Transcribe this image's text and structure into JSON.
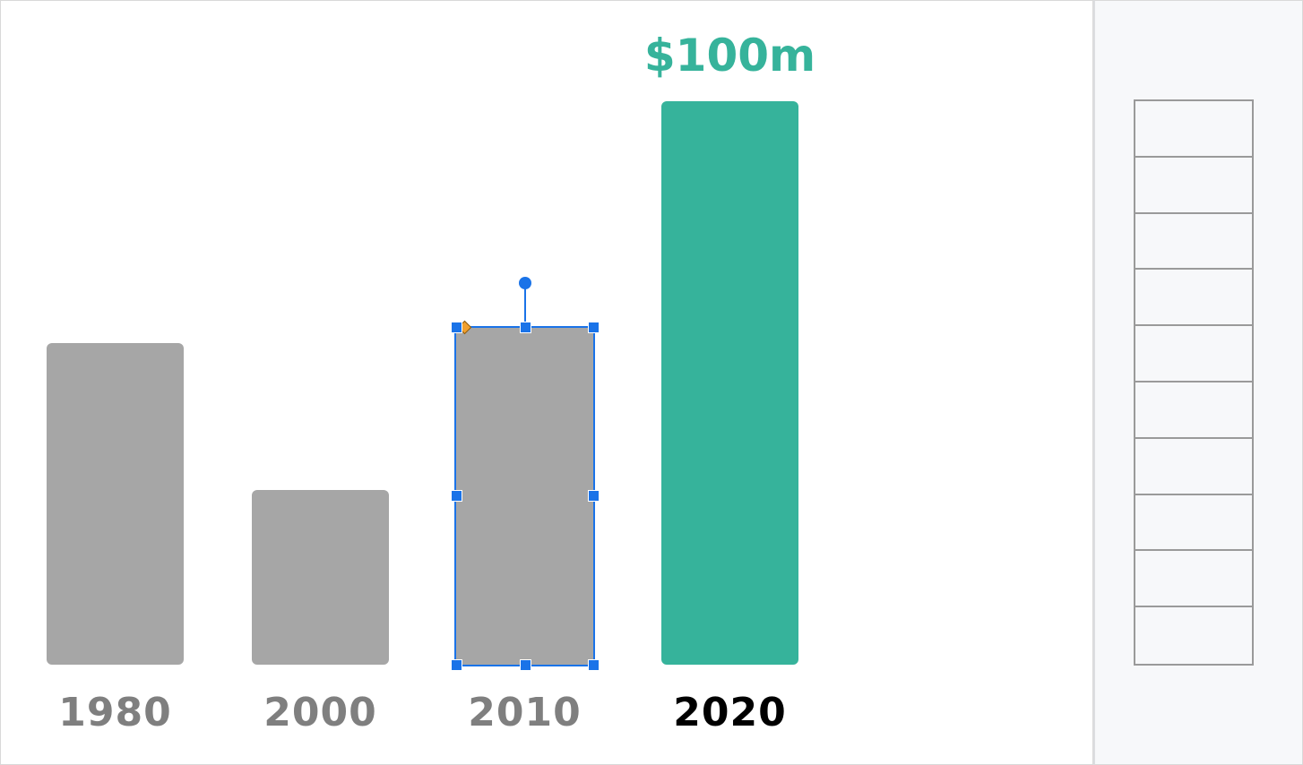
{
  "chart_data": {
    "type": "bar",
    "categories": [
      "1980",
      "2000",
      "2010",
      "2020"
    ],
    "values": [
      57,
      31,
      60,
      100
    ],
    "highlight": {
      "category": "2020",
      "label": "$100m"
    },
    "ylim": [
      0,
      100
    ],
    "grid": false,
    "colors": {
      "default": "#a6a6a6",
      "highlight": "#36b39b",
      "label_default": "#7f7f7f",
      "label_highlight": "#000000"
    }
  },
  "selection": {
    "selected_category": "2010"
  },
  "side_panel": {
    "rows": 10
  }
}
